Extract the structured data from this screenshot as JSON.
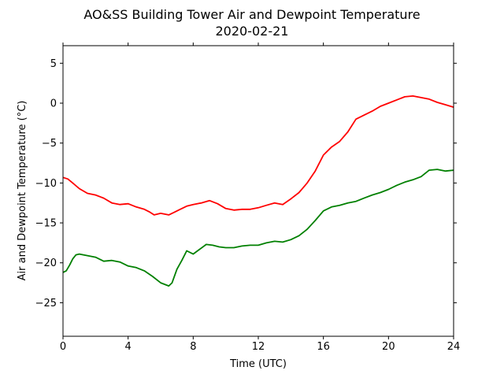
{
  "chart_data": {
    "type": "line",
    "title": "AO&SS Building Tower Air and Dewpoint Temperature",
    "subtitle": "2020-02-21",
    "xlabel": "Time (UTC)",
    "ylabel": "Air and Dewpoint Temperature (°C)",
    "xlim": [
      0,
      24
    ],
    "ylim": [
      -29.2,
      7.2
    ],
    "xticks": [
      0,
      4,
      8,
      12,
      16,
      20,
      24
    ],
    "yticks": [
      5,
      0,
      -5,
      -10,
      -15,
      -20,
      -25
    ],
    "ytick_labels": [
      "5",
      "0",
      "−5",
      "−10",
      "−15",
      "−20",
      "−25"
    ],
    "grid": false,
    "series": [
      {
        "color": "#ff0000",
        "x": [
          0,
          0.3,
          0.6,
          1.0,
          1.5,
          2.0,
          2.5,
          3.0,
          3.5,
          4.0,
          4.5,
          5.0,
          5.3,
          5.6,
          6.0,
          6.5,
          6.8,
          7.2,
          7.6,
          8.0,
          8.5,
          9.0,
          9.5,
          10.0,
          10.5,
          11.0,
          11.5,
          12.0,
          12.5,
          13.0,
          13.5,
          14.0,
          14.5,
          15.0,
          15.5,
          16.0,
          16.5,
          17.0,
          17.5,
          18.0,
          18.5,
          19.0,
          19.5,
          20.0,
          20.5,
          21.0,
          21.5,
          22.0,
          22.5,
          23.0,
          23.5,
          24.0
        ],
        "values": [
          -9.3,
          -9.5,
          -10.0,
          -10.7,
          -11.3,
          -11.5,
          -11.9,
          -12.5,
          -12.7,
          -12.6,
          -13.0,
          -13.3,
          -13.6,
          -14.0,
          -13.8,
          -14.0,
          -13.7,
          -13.3,
          -12.9,
          -12.7,
          -12.5,
          -12.2,
          -12.6,
          -13.2,
          -13.4,
          -13.3,
          -13.3,
          -13.1,
          -12.8,
          -12.5,
          -12.7,
          -12.0,
          -11.2,
          -10.0,
          -8.5,
          -6.5,
          -5.5,
          -4.8,
          -3.6,
          -2.0,
          -1.5,
          -1.0,
          -0.4,
          0.0,
          0.4,
          0.8,
          0.9,
          0.7,
          0.5,
          0.1,
          -0.2,
          -0.5
        ]
      },
      {
        "color": "#008000",
        "x": [
          0,
          0.2,
          0.4,
          0.6,
          0.8,
          1.0,
          1.5,
          2.0,
          2.5,
          3.0,
          3.5,
          4.0,
          4.5,
          5.0,
          5.5,
          6.0,
          6.5,
          6.7,
          7.0,
          7.3,
          7.6,
          8.0,
          8.4,
          8.8,
          9.2,
          9.6,
          10.0,
          10.5,
          11.0,
          11.5,
          12.0,
          12.5,
          13.0,
          13.5,
          14.0,
          14.5,
          15.0,
          15.5,
          16.0,
          16.5,
          17.0,
          17.5,
          18.0,
          18.5,
          19.0,
          19.5,
          20.0,
          20.5,
          21.0,
          21.5,
          22.0,
          22.5,
          23.0,
          23.5,
          24.0
        ],
        "values": [
          -21.2,
          -21.0,
          -20.3,
          -19.5,
          -19.0,
          -18.9,
          -19.1,
          -19.3,
          -19.8,
          -19.7,
          -19.9,
          -20.4,
          -20.6,
          -21.0,
          -21.7,
          -22.5,
          -22.9,
          -22.5,
          -20.8,
          -19.7,
          -18.5,
          -18.9,
          -18.3,
          -17.7,
          -17.8,
          -18.0,
          -18.1,
          -18.1,
          -17.9,
          -17.8,
          -17.8,
          -17.5,
          -17.3,
          -17.4,
          -17.1,
          -16.6,
          -15.8,
          -14.7,
          -13.5,
          -13.0,
          -12.8,
          -12.5,
          -12.3,
          -11.9,
          -11.5,
          -11.2,
          -10.8,
          -10.3,
          -9.9,
          -9.6,
          -9.2,
          -8.4,
          -8.3,
          -8.5,
          -8.4
        ]
      }
    ]
  }
}
